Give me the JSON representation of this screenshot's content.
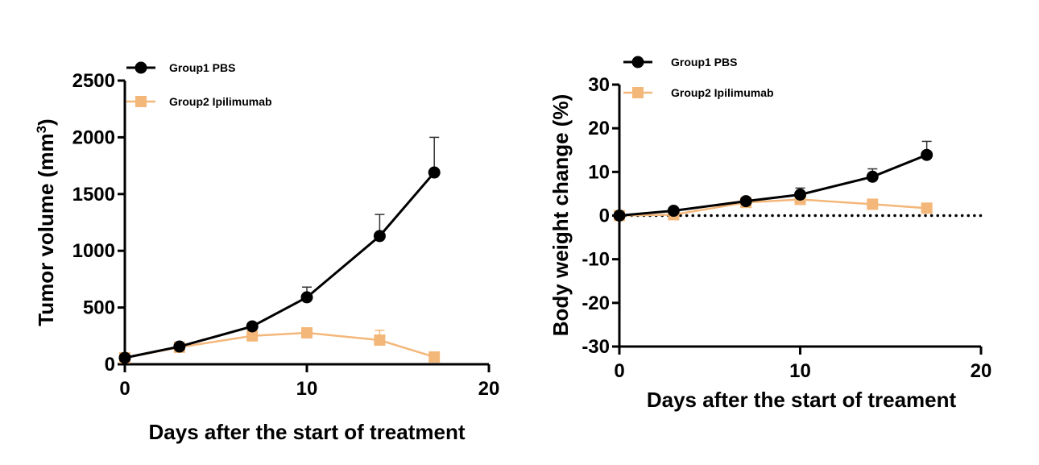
{
  "colors": {
    "group1": "#000000",
    "group2": "#f4b77a"
  },
  "chart_data": [
    {
      "type": "line",
      "xlabel": "Days after the start of treatment",
      "ylabel": "Tumor volume (mm",
      "ylabel_sup": "3",
      "ylabel_close": ")",
      "xlim": [
        0,
        20
      ],
      "ylim": [
        0,
        2500
      ],
      "xticks": [
        0,
        10,
        20
      ],
      "yticks": [
        0,
        500,
        1000,
        1500,
        2000,
        2500
      ],
      "xticks_labeled": [
        "0",
        "10",
        "20"
      ],
      "yticks_labeled": [
        "0",
        "500",
        "1000",
        "1500",
        "2000",
        "2500"
      ],
      "x_minor_ticks": [],
      "legend_position": "top-left",
      "series": [
        {
          "name": "Group1 PBS",
          "marker": "circle",
          "x": [
            0,
            3,
            7,
            10,
            14,
            17
          ],
          "y": [
            57,
            156,
            334,
            590,
            1130,
            1690
          ],
          "err_upper": [
            null,
            null,
            null,
            680,
            1320,
            2000
          ]
        },
        {
          "name": "Group2 Ipilimumab",
          "marker": "square",
          "x": [
            0,
            3,
            7,
            10,
            14,
            17
          ],
          "y": [
            57,
            150,
            250,
            277,
            213,
            64
          ],
          "err_upper": [
            null,
            null,
            null,
            null,
            300,
            null
          ]
        }
      ]
    },
    {
      "type": "line",
      "xlabel": "Days after the start of treament",
      "ylabel": "Body weight change (%)",
      "xlim": [
        0,
        20
      ],
      "ylim": [
        -30,
        30
      ],
      "xticks": [
        0,
        10,
        20
      ],
      "yticks": [
        -30,
        -20,
        -10,
        0,
        10,
        20,
        30
      ],
      "xticks_labeled": [
        "0",
        "10",
        "20"
      ],
      "yticks_labeled": [
        "-30",
        "-20",
        "-10",
        "0",
        "10",
        "20",
        "30"
      ],
      "reference_line": {
        "y": 0,
        "style": "dotted"
      },
      "legend_position": "top-left",
      "series": [
        {
          "name": "Group1 PBS",
          "marker": "circle",
          "x": [
            0,
            3,
            7,
            10,
            14,
            17
          ],
          "y": [
            0,
            1.1,
            3.3,
            4.8,
            8.9,
            13.9
          ],
          "err_upper": [
            null,
            null,
            null,
            6.3,
            10.7,
            17
          ]
        },
        {
          "name": "Group2 Ipilimumab",
          "marker": "square",
          "x": [
            0,
            3,
            7,
            10,
            14,
            17
          ],
          "y": [
            0,
            0.2,
            3.0,
            3.7,
            2.6,
            1.7
          ],
          "err_upper": [
            null,
            null,
            null,
            null,
            null,
            null
          ]
        }
      ]
    }
  ]
}
